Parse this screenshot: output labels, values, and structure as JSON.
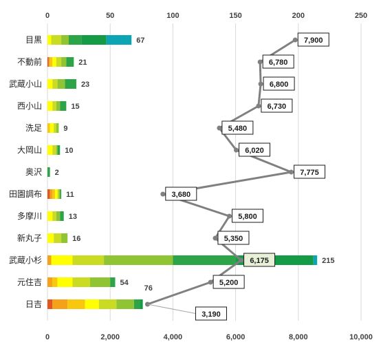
{
  "chart_data": {
    "type": "bar",
    "orientation": "horizontal",
    "stacked": true,
    "categories": [
      "目黒",
      "不動前",
      "武蔵小山",
      "西小山",
      "洗足",
      "大岡山",
      "奥沢",
      "田園調布",
      "多摩川",
      "新丸子",
      "武蔵小杉",
      "元住吉",
      "日吉"
    ],
    "top_axis": {
      "range": [
        0,
        250
      ],
      "ticks": [
        "0",
        "50",
        "100",
        "150",
        "200",
        "250"
      ]
    },
    "bottom_axis": {
      "range": [
        0,
        10000
      ],
      "ticks": [
        "0",
        "2,000",
        "4,000",
        "6,000",
        "8,000",
        "10,000"
      ]
    },
    "grid": true,
    "bar_totals": [
      "67",
      "21",
      "23",
      "15",
      "9",
      "10",
      "2",
      "11",
      "13",
      "16",
      "215",
      "54",
      "76"
    ],
    "segment_colors": [
      "#e2561f",
      "#f5a11a",
      "#f9c80e",
      "#ffff00",
      "#c9dc23",
      "#8fc534",
      "#2ea448",
      "#159a45",
      "#0da5b4"
    ],
    "bar_segments": [
      [
        0,
        0,
        0,
        3,
        8,
        6,
        10,
        20,
        20
      ],
      [
        1,
        1,
        2,
        3,
        4,
        4,
        6,
        0,
        0
      ],
      [
        0,
        0,
        0,
        4,
        4,
        6,
        9,
        0,
        0
      ],
      [
        0,
        0,
        0,
        4,
        3,
        3,
        5,
        0,
        0
      ],
      [
        0,
        0,
        2,
        3,
        2,
        2,
        0,
        0,
        0
      ],
      [
        0,
        0,
        0,
        4,
        3,
        1,
        2,
        0,
        0
      ],
      [
        0,
        0,
        0,
        0,
        0,
        0,
        2,
        0,
        0
      ],
      [
        2,
        2,
        2,
        2,
        1,
        1,
        1,
        0,
        0
      ],
      [
        0,
        0,
        0,
        4,
        3,
        3,
        3,
        0,
        0
      ],
      [
        0,
        0,
        0,
        5,
        6,
        5,
        0,
        0,
        0
      ],
      [
        0,
        3,
        0,
        17,
        25,
        55,
        50,
        62,
        3
      ],
      [
        0,
        4,
        4,
        12,
        14,
        16,
        4,
        0,
        0
      ],
      [
        4,
        12,
        14,
        11,
        14,
        14,
        5,
        2,
        0
      ]
    ],
    "series": [
      {
        "values": [
          7900,
          6780,
          6800,
          6730,
          5480,
          6020,
          7775,
          3680,
          5800,
          5350,
          6175,
          5200,
          3190
        ],
        "labels": [
          "7,900",
          "6,780",
          "6,800",
          "6,730",
          "5,480",
          "6,020",
          "7,775",
          "3,680",
          "5,800",
          "5,350",
          "6,175",
          "5,200",
          "3,190"
        ],
        "color": "#808080"
      }
    ]
  }
}
